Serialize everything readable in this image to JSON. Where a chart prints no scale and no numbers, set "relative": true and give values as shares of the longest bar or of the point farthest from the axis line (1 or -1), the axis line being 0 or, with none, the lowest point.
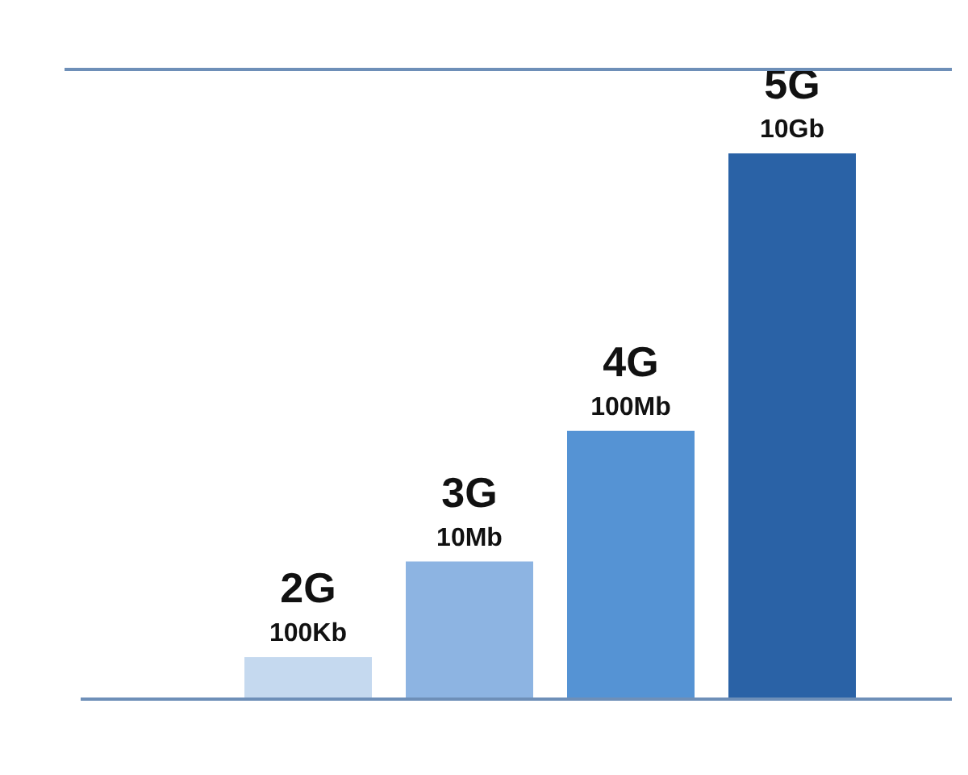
{
  "chart_data": {
    "type": "bar",
    "relative": true,
    "categories": [
      "2G",
      "3G",
      "4G",
      "5G"
    ],
    "values": [
      0.074,
      0.25,
      0.49,
      1
    ],
    "colors": [
      "#c5d9ef",
      "#8db4e2",
      "#5593d4",
      "#2a62a6"
    ],
    "annotations": [
      "100Kb",
      "10Mb",
      "100Mb",
      "10Gb"
    ],
    "legend": false
  }
}
